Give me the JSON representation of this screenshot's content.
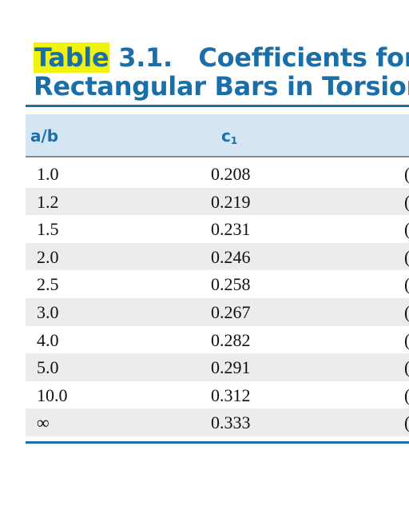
{
  "title": {
    "table_word": "Table",
    "number": " 3.1.",
    "text_line1": "Coefficients for",
    "text_line2": "Rectangular Bars in Torsion"
  },
  "columns": {
    "ab": "a/b",
    "c1_base": "c",
    "c1_sub": "1"
  },
  "rows": [
    {
      "ab": "1.0",
      "c1": "0.208",
      "c2": "("
    },
    {
      "ab": "1.2",
      "c1": "0.219",
      "c2": "("
    },
    {
      "ab": "1.5",
      "c1": "0.231",
      "c2": "("
    },
    {
      "ab": "2.0",
      "c1": "0.246",
      "c2": "("
    },
    {
      "ab": "2.5",
      "c1": "0.258",
      "c2": "("
    },
    {
      "ab": "3.0",
      "c1": "0.267",
      "c2": "("
    },
    {
      "ab": "4.0",
      "c1": "0.282",
      "c2": "("
    },
    {
      "ab": "5.0",
      "c1": "0.291",
      "c2": "("
    },
    {
      "ab": "10.0",
      "c1": "0.312",
      "c2": "("
    },
    {
      "ab": "∞",
      "c1": "0.333",
      "c2": "("
    }
  ],
  "colors": {
    "accent": "#1a6fa8",
    "highlight": "#f2f20f",
    "header_band": "#d4e6f3",
    "row_shade": "#ececec"
  }
}
